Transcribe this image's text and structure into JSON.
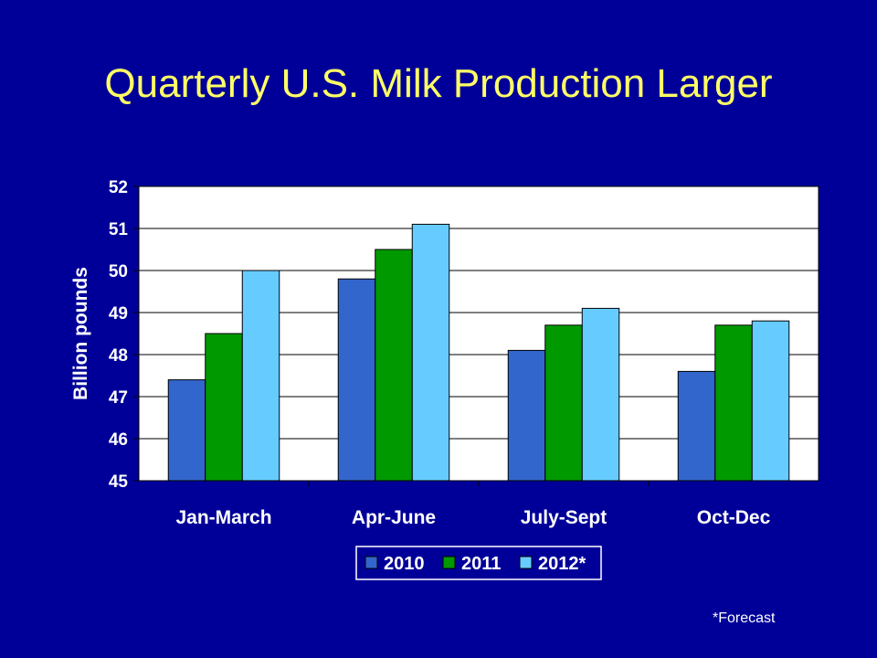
{
  "slide": {
    "title": "Quarterly U.S. Milk Production Larger",
    "footnote": "*Forecast"
  },
  "colors": {
    "background": "#000099",
    "title": "#FFFF66",
    "plot_area": "#FFFFFF",
    "text": "#FFFFFF",
    "series_2010": "#3366CC",
    "series_2011": "#009900",
    "series_2012": "#66CCFF"
  },
  "chart_data": {
    "type": "bar",
    "title": "",
    "xlabel": "",
    "ylabel": "Billion pounds",
    "categories": [
      "Jan-March",
      "Apr-June",
      "July-Sept",
      "Oct-Dec"
    ],
    "ylim": [
      45,
      52
    ],
    "yticks": [
      45,
      46,
      47,
      48,
      49,
      50,
      51,
      52
    ],
    "grid": true,
    "legend_position": "bottom",
    "series": [
      {
        "name": "2010",
        "color": "#3366CC",
        "values": [
          47.4,
          49.8,
          48.1,
          47.6
        ]
      },
      {
        "name": "2011",
        "color": "#009900",
        "values": [
          48.5,
          50.5,
          48.7,
          48.7
        ]
      },
      {
        "name": "2012*",
        "color": "#66CCFF",
        "values": [
          50.0,
          51.1,
          49.1,
          48.8
        ]
      }
    ]
  }
}
